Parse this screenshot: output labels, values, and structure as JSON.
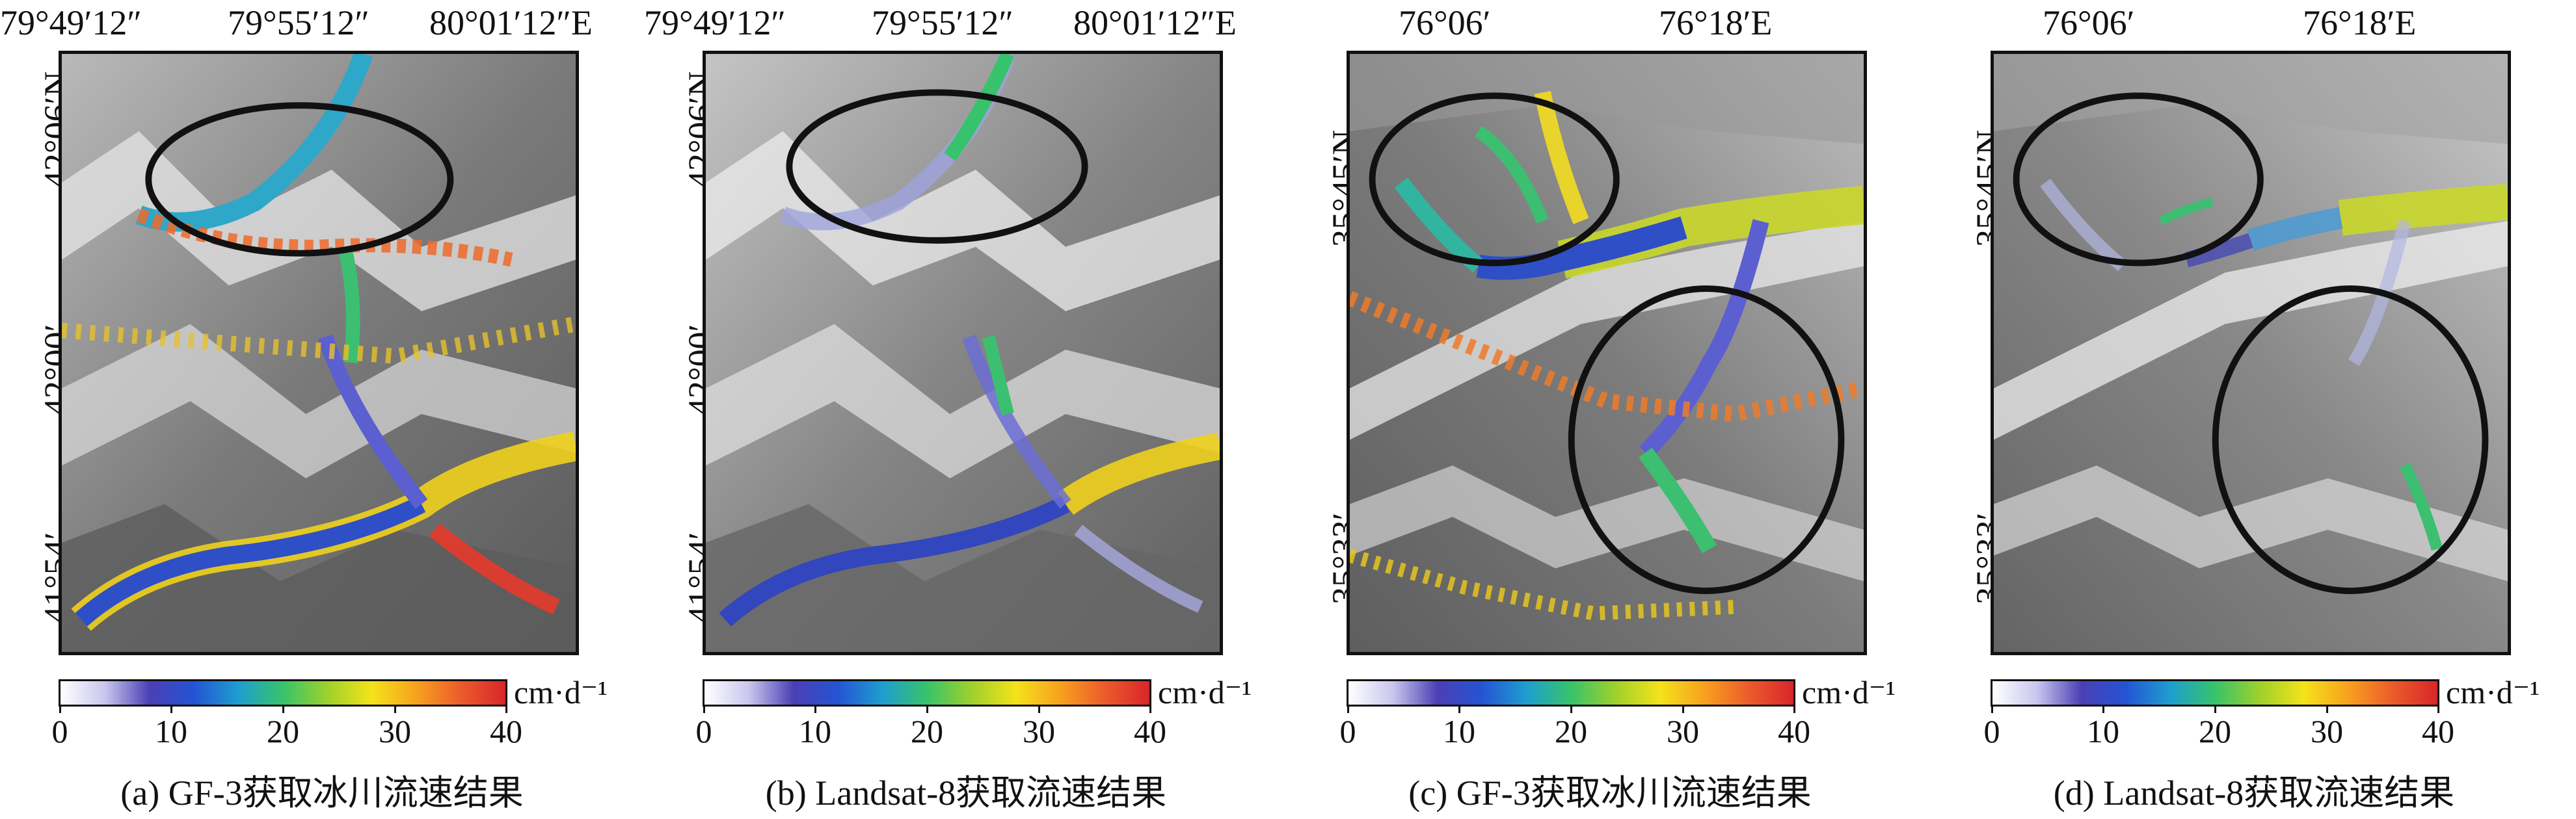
{
  "figure": {
    "panels": [
      {
        "top_ticks": [
          "79°49′12″",
          "79°55′12″",
          "80°01′12″E"
        ],
        "left_ticks": [
          "42°06′N",
          "42°00′",
          "41°54′"
        ],
        "colorbar_unit": "cm·d⁻¹",
        "colorbar_ticks": [
          "0",
          "10",
          "20",
          "30",
          "40"
        ],
        "caption": "(a) GF-3获取冰川流速结果",
        "ellipses": 1,
        "velocity_coverage": "dense"
      },
      {
        "top_ticks": [
          "79°49′12″",
          "79°55′12″",
          "80°01′12″E"
        ],
        "left_ticks": [
          "42°06′N",
          "42°00′",
          "41°54′"
        ],
        "colorbar_unit": "cm·d⁻¹",
        "colorbar_ticks": [
          "0",
          "10",
          "20",
          "30",
          "40"
        ],
        "caption": "(b) Landsat-8获取流速结果",
        "ellipses": 1,
        "velocity_coverage": "sparse"
      },
      {
        "top_ticks": [
          "76°06′",
          "76°18′E"
        ],
        "left_ticks": [
          "35°45′N",
          "35°33′"
        ],
        "colorbar_unit": "cm·d⁻¹",
        "colorbar_ticks": [
          "0",
          "10",
          "20",
          "30",
          "40"
        ],
        "caption": "(c) GF-3获取冰川流速结果",
        "ellipses": 2,
        "velocity_coverage": "dense"
      },
      {
        "top_ticks": [
          "76°06′",
          "76°18′E"
        ],
        "left_ticks": [
          "35°45′N",
          "35°33′"
        ],
        "colorbar_unit": "cm·d⁻¹",
        "colorbar_ticks": [
          "0",
          "10",
          "20",
          "30",
          "40"
        ],
        "caption": "(d) Landsat-8获取流速结果",
        "ellipses": 2,
        "velocity_coverage": "sparse"
      }
    ],
    "colorbar_range": [
      0,
      40
    ],
    "colorbar_colors": [
      "#ffffff",
      "#4b3fb4",
      "#1e9ed0",
      "#37c36b",
      "#f5e21a",
      "#f7a11f",
      "#d8262b"
    ]
  }
}
